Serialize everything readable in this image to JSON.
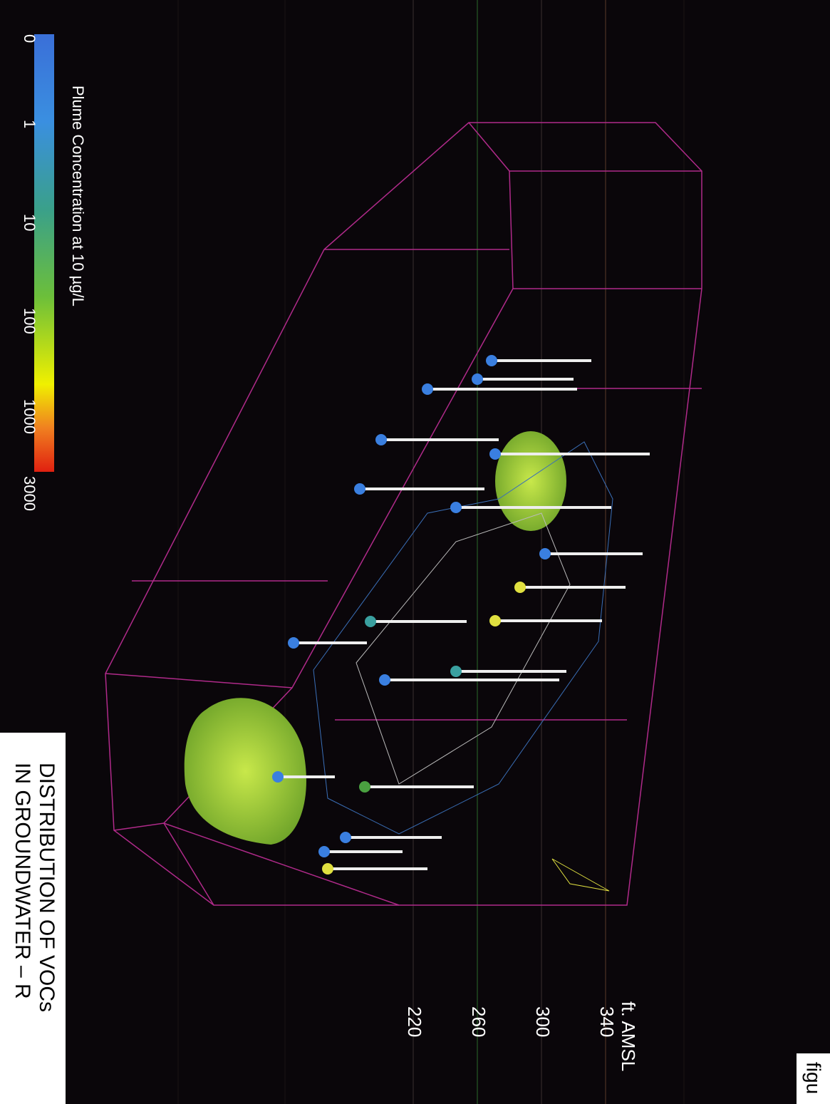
{
  "legend": {
    "title": "Plume Concentration at 10 µg/L",
    "ticks": [
      "0",
      "1",
      "10",
      "100",
      "1000",
      "3000"
    ]
  },
  "axis": {
    "title": "ft. AMSL",
    "ticks": [
      "340",
      "300",
      "260",
      "220"
    ]
  },
  "caption": {
    "lines": [
      "DISTRIBUTION OF VOCs",
      "IN GROUNDWATER – R"
    ],
    "label": "figu"
  }
}
